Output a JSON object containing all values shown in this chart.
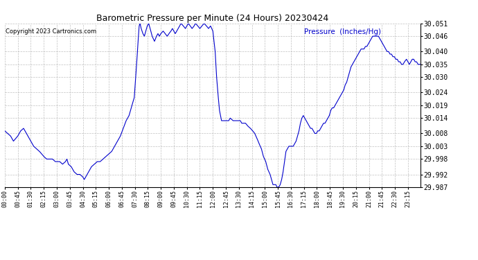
{
  "title": "Barometric Pressure per Minute (24 Hours) 20230424",
  "copyright": "Copyright 2023 Cartronics.com",
  "ylabel": "Pressure  (Inches/Hg)",
  "line_color": "#0000cc",
  "background_color": "#ffffff",
  "grid_color": "#b0b0b0",
  "ylim": [
    29.987,
    30.051
  ],
  "yticks": [
    29.987,
    29.992,
    29.998,
    30.003,
    30.008,
    30.014,
    30.019,
    30.024,
    30.03,
    30.035,
    30.04,
    30.046,
    30.051
  ],
  "xtick_interval_minutes": 45,
  "total_minutes": 1440,
  "waypoints": [
    [
      0,
      30.009
    ],
    [
      10,
      30.008
    ],
    [
      20,
      30.007
    ],
    [
      30,
      30.005
    ],
    [
      45,
      30.007
    ],
    [
      55,
      30.009
    ],
    [
      65,
      30.01
    ],
    [
      75,
      30.008
    ],
    [
      90,
      30.005
    ],
    [
      100,
      30.003
    ],
    [
      110,
      30.002
    ],
    [
      120,
      30.001
    ],
    [
      135,
      29.999
    ],
    [
      145,
      29.998
    ],
    [
      155,
      29.998
    ],
    [
      165,
      29.998
    ],
    [
      175,
      29.997
    ],
    [
      190,
      29.997
    ],
    [
      200,
      29.996
    ],
    [
      210,
      29.997
    ],
    [
      215,
      29.998
    ],
    [
      220,
      29.996
    ],
    [
      230,
      29.995
    ],
    [
      240,
      29.993
    ],
    [
      250,
      29.992
    ],
    [
      260,
      29.992
    ],
    [
      270,
      29.991
    ],
    [
      275,
      29.99
    ],
    [
      280,
      29.991
    ],
    [
      290,
      29.993
    ],
    [
      295,
      29.994
    ],
    [
      300,
      29.995
    ],
    [
      310,
      29.996
    ],
    [
      320,
      29.997
    ],
    [
      330,
      29.997
    ],
    [
      340,
      29.998
    ],
    [
      350,
      29.999
    ],
    [
      360,
      30.0
    ],
    [
      370,
      30.001
    ],
    [
      380,
      30.003
    ],
    [
      390,
      30.005
    ],
    [
      400,
      30.007
    ],
    [
      410,
      30.01
    ],
    [
      420,
      30.013
    ],
    [
      430,
      30.015
    ],
    [
      440,
      30.019
    ],
    [
      448,
      30.022
    ],
    [
      455,
      30.033
    ],
    [
      460,
      30.042
    ],
    [
      465,
      30.05
    ],
    [
      468,
      30.051
    ],
    [
      472,
      30.049
    ],
    [
      478,
      30.047
    ],
    [
      483,
      30.046
    ],
    [
      488,
      30.048
    ],
    [
      493,
      30.05
    ],
    [
      498,
      30.051
    ],
    [
      503,
      30.049
    ],
    [
      510,
      30.046
    ],
    [
      518,
      30.044
    ],
    [
      525,
      30.046
    ],
    [
      530,
      30.047
    ],
    [
      535,
      30.046
    ],
    [
      540,
      30.047
    ],
    [
      548,
      30.048
    ],
    [
      555,
      30.047
    ],
    [
      562,
      30.046
    ],
    [
      568,
      30.047
    ],
    [
      575,
      30.048
    ],
    [
      580,
      30.049
    ],
    [
      585,
      30.048
    ],
    [
      590,
      30.047
    ],
    [
      595,
      30.048
    ],
    [
      600,
      30.049
    ],
    [
      605,
      30.05
    ],
    [
      610,
      30.051
    ],
    [
      618,
      30.05
    ],
    [
      625,
      30.049
    ],
    [
      630,
      30.05
    ],
    [
      635,
      30.051
    ],
    [
      642,
      30.05
    ],
    [
      648,
      30.049
    ],
    [
      655,
      30.05
    ],
    [
      660,
      30.051
    ],
    [
      668,
      30.05
    ],
    [
      675,
      30.049
    ],
    [
      682,
      30.05
    ],
    [
      690,
      30.051
    ],
    [
      698,
      30.05
    ],
    [
      705,
      30.049
    ],
    [
      712,
      30.05
    ],
    [
      720,
      30.048
    ],
    [
      728,
      30.04
    ],
    [
      733,
      30.03
    ],
    [
      738,
      30.023
    ],
    [
      743,
      30.017
    ],
    [
      750,
      30.013
    ],
    [
      758,
      30.013
    ],
    [
      765,
      30.013
    ],
    [
      775,
      30.013
    ],
    [
      780,
      30.014
    ],
    [
      790,
      30.013
    ],
    [
      800,
      30.013
    ],
    [
      808,
      30.013
    ],
    [
      815,
      30.013
    ],
    [
      820,
      30.012
    ],
    [
      825,
      30.012
    ],
    [
      833,
      30.012
    ],
    [
      840,
      30.011
    ],
    [
      850,
      30.01
    ],
    [
      858,
      30.009
    ],
    [
      865,
      30.008
    ],
    [
      873,
      30.006
    ],
    [
      880,
      30.004
    ],
    [
      888,
      30.002
    ],
    [
      895,
      29.999
    ],
    [
      903,
      29.997
    ],
    [
      910,
      29.994
    ],
    [
      918,
      29.992
    ],
    [
      923,
      29.99
    ],
    [
      928,
      29.988
    ],
    [
      933,
      29.988
    ],
    [
      938,
      29.988
    ],
    [
      942,
      29.987
    ],
    [
      945,
      29.987
    ],
    [
      948,
      29.987
    ],
    [
      953,
      29.988
    ],
    [
      958,
      29.99
    ],
    [
      963,
      29.993
    ],
    [
      968,
      29.997
    ],
    [
      973,
      30.001
    ],
    [
      978,
      30.002
    ],
    [
      983,
      30.003
    ],
    [
      988,
      30.003
    ],
    [
      993,
      30.003
    ],
    [
      998,
      30.003
    ],
    [
      1003,
      30.004
    ],
    [
      1008,
      30.005
    ],
    [
      1013,
      30.007
    ],
    [
      1018,
      30.009
    ],
    [
      1023,
      30.012
    ],
    [
      1028,
      30.014
    ],
    [
      1033,
      30.015
    ],
    [
      1038,
      30.014
    ],
    [
      1043,
      30.013
    ],
    [
      1048,
      30.012
    ],
    [
      1053,
      30.011
    ],
    [
      1058,
      30.01
    ],
    [
      1063,
      30.01
    ],
    [
      1068,
      30.009
    ],
    [
      1073,
      30.008
    ],
    [
      1078,
      30.008
    ],
    [
      1083,
      30.009
    ],
    [
      1088,
      30.009
    ],
    [
      1093,
      30.01
    ],
    [
      1098,
      30.011
    ],
    [
      1103,
      30.012
    ],
    [
      1108,
      30.012
    ],
    [
      1113,
      30.013
    ],
    [
      1118,
      30.014
    ],
    [
      1123,
      30.015
    ],
    [
      1128,
      30.017
    ],
    [
      1133,
      30.018
    ],
    [
      1138,
      30.018
    ],
    [
      1143,
      30.019
    ],
    [
      1148,
      30.02
    ],
    [
      1153,
      30.021
    ],
    [
      1158,
      30.022
    ],
    [
      1163,
      30.023
    ],
    [
      1168,
      30.024
    ],
    [
      1173,
      30.025
    ],
    [
      1178,
      30.027
    ],
    [
      1183,
      30.028
    ],
    [
      1188,
      30.03
    ],
    [
      1193,
      30.032
    ],
    [
      1198,
      30.034
    ],
    [
      1203,
      30.035
    ],
    [
      1208,
      30.036
    ],
    [
      1213,
      30.037
    ],
    [
      1218,
      30.038
    ],
    [
      1223,
      30.039
    ],
    [
      1228,
      30.04
    ],
    [
      1233,
      30.041
    ],
    [
      1238,
      30.041
    ],
    [
      1243,
      30.041
    ],
    [
      1248,
      30.042
    ],
    [
      1253,
      30.042
    ],
    [
      1258,
      30.043
    ],
    [
      1263,
      30.044
    ],
    [
      1268,
      30.045
    ],
    [
      1273,
      30.046
    ],
    [
      1278,
      30.046
    ],
    [
      1283,
      30.046
    ],
    [
      1288,
      30.046
    ],
    [
      1293,
      30.046
    ],
    [
      1298,
      30.045
    ],
    [
      1303,
      30.044
    ],
    [
      1308,
      30.043
    ],
    [
      1313,
      30.042
    ],
    [
      1318,
      30.041
    ],
    [
      1323,
      30.04
    ],
    [
      1328,
      30.04
    ],
    [
      1333,
      30.039
    ],
    [
      1338,
      30.039
    ],
    [
      1343,
      30.038
    ],
    [
      1348,
      30.038
    ],
    [
      1353,
      30.037
    ],
    [
      1358,
      30.037
    ],
    [
      1363,
      30.036
    ],
    [
      1368,
      30.036
    ],
    [
      1373,
      30.035
    ],
    [
      1378,
      30.035
    ],
    [
      1383,
      30.036
    ],
    [
      1390,
      30.037
    ],
    [
      1395,
      30.036
    ],
    [
      1400,
      30.035
    ],
    [
      1405,
      30.036
    ],
    [
      1410,
      30.037
    ],
    [
      1415,
      30.037
    ],
    [
      1420,
      30.036
    ],
    [
      1425,
      30.036
    ],
    [
      1430,
      30.035
    ],
    [
      1435,
      30.035
    ],
    [
      1439,
      30.035
    ]
  ]
}
